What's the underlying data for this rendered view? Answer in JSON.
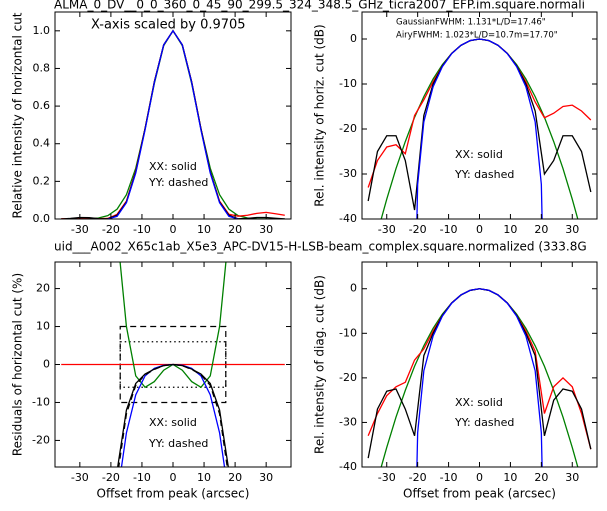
{
  "chart_data": [
    {
      "type": "line",
      "title": "ALMA_0_DV__0_0_360_0_45_90_299.5_324_348.5_GHz_ticra2007_EFP.im.square.normali",
      "title_color": "#000000",
      "ylabel": "Relative intensity of horizontal cut",
      "x": [
        -36,
        -33,
        -30,
        -27,
        -24,
        -21,
        -18,
        -15,
        -12,
        -9,
        -6,
        -3,
        0,
        3,
        6,
        9,
        12,
        15,
        18,
        21,
        24,
        27,
        30,
        33,
        36
      ],
      "xlim": [
        -38,
        38
      ],
      "xticks": [
        -30,
        -20,
        -10,
        0,
        10,
        20,
        30
      ],
      "ylim": [
        0,
        1.1
      ],
      "yticks": [
        {
          "value": 0,
          "label": "0.0"
        },
        0.2,
        0.4,
        0.6,
        0.8,
        {
          "value": 1,
          "label": "1.0"
        }
      ],
      "annotations": [
        {
          "text": "X-axis scaled by 0.9705",
          "color": "#000000"
        },
        {
          "text": "XX: solid",
          "color": "#000000"
        },
        {
          "text": "YY: dashed",
          "color": "#000000"
        }
      ],
      "series": [
        {
          "color": "#008000",
          "dash": false,
          "values": [
            0,
            0,
            0.0003,
            0.0013,
            0.0053,
            0.018,
            0.0525,
            0.129,
            0.27,
            0.479,
            0.721,
            0.921,
            1,
            0.921,
            0.721,
            0.479,
            0.27,
            0.129,
            0.0525,
            0.018,
            0.0053,
            0.0013,
            0.0003,
            0,
            0
          ]
        },
        {
          "color": "#ff0000",
          "dash": false,
          "values": [
            0.001,
            0.002,
            0.004,
            0.003,
            0.002,
            0.003,
            0.025,
            0.095,
            0.255,
            0.48,
            0.73,
            0.925,
            1,
            0.925,
            0.73,
            0.48,
            0.25,
            0.095,
            0.025,
            0.015,
            0.02,
            0.03,
            0.035,
            0.028,
            0.02
          ]
        },
        {
          "color": "#000000",
          "dash": false,
          "values": [
            0.0001,
            0.003,
            0.008,
            0.007,
            0.002,
            0.001,
            0.02,
            0.09,
            0.25,
            0.48,
            0.73,
            0.925,
            1,
            0.925,
            0.73,
            0.48,
            0.25,
            0.09,
            0.02,
            0.001,
            0.003,
            0.008,
            0.008,
            0.004,
            0.0005
          ]
        },
        {
          "color": "#0000ff",
          "dash": false,
          "x": [
            -21,
            -18,
            -15,
            -12,
            -9,
            -6,
            -3,
            0,
            3,
            6,
            9,
            12,
            15,
            18,
            21
          ],
          "values": [
            0,
            0.0144,
            0.0863,
            0.244,
            0.473,
            0.726,
            0.925,
            1,
            0.925,
            0.726,
            0.473,
            0.244,
            0.0863,
            0.0144,
            0
          ]
        }
      ]
    },
    {
      "type": "line",
      "ylabel": "Rel. intensity of horiz. cut (dB)",
      "x": [
        -36,
        -33,
        -30,
        -27,
        -24,
        -21,
        -18,
        -15,
        -12,
        -9,
        -6,
        -3,
        0,
        3,
        6,
        9,
        12,
        15,
        18,
        21,
        24,
        27,
        30,
        33,
        36
      ],
      "xlim": [
        -38,
        38
      ],
      "xticks": [
        -30,
        -20,
        -10,
        0,
        10,
        20,
        30
      ],
      "ylim": [
        -40,
        6
      ],
      "yticks": [
        -40,
        -30,
        -20,
        -10,
        0
      ],
      "annotations": [
        {
          "text": "GaussianFWHM: 1.131*L/D=17.46\"",
          "color": "#008000"
        },
        {
          "text": "AiryFWHM: 1.023*L/D=10.7m=17.70\"",
          "color": "#0000ff"
        },
        {
          "text": "XX: solid",
          "color": "#000000"
        },
        {
          "text": "YY: dashed",
          "color": "#000000"
        }
      ],
      "series": [
        {
          "color": "#008000",
          "dash": false,
          "values": [
            -51.2,
            -43,
            -35.6,
            -28.8,
            -22.8,
            -17.4,
            -12.8,
            -8.89,
            -5.69,
            -3.2,
            -1.42,
            -0.356,
            0,
            -0.356,
            -1.42,
            -3.2,
            -5.69,
            -8.89,
            -12.8,
            -17.4,
            -22.8,
            -28.8,
            -35.6,
            -43,
            -51.2
          ]
        },
        {
          "color": "#ff0000",
          "dash": false,
          "values": [
            -33,
            -27,
            -24,
            -23.5,
            -25.5,
            -17,
            -13.5,
            -9.5,
            -6,
            -3.2,
            -1.4,
            -0.35,
            0,
            -0.35,
            -1.4,
            -3.2,
            -6,
            -9.5,
            -14,
            -17.5,
            -16.5,
            -15,
            -14.7,
            -16,
            -18
          ]
        },
        {
          "color": "#000000",
          "dash": false,
          "values": [
            -36,
            -25,
            -21.5,
            -21.5,
            -27,
            -38,
            -17,
            -10,
            -6,
            -3.2,
            -1.4,
            -0.35,
            0,
            -0.35,
            -1.4,
            -3.2,
            -6,
            -10,
            -16,
            -30,
            -27,
            -21.5,
            -21.5,
            -25,
            -34
          ]
        },
        {
          "color": "#0000ff",
          "dash": false,
          "x": [
            -20.5,
            -20,
            -18,
            -15,
            -12,
            -9,
            -6,
            -3,
            0,
            3,
            6,
            9,
            12,
            15,
            18,
            20,
            20.5
          ],
          "values": [
            -48,
            -32.3,
            -18.4,
            -10.6,
            -6.13,
            -3.25,
            -1.39,
            -0.34,
            0,
            -0.34,
            -1.39,
            -3.25,
            -6.13,
            -10.6,
            -18.4,
            -32.3,
            -48
          ]
        }
      ]
    },
    {
      "type": "line",
      "title": "uid___A002_X65c1ab_X5e3_APC-DV15-H-LSB-beam_complex.square.normalized (333.8G",
      "title_color": "#ff0000",
      "ylabel": "Residuals of horizontal cut (%)",
      "xlabel": "Offset from peak (arcsec)",
      "x": [
        -36,
        -33,
        -30,
        -27,
        -24,
        -21,
        -18,
        -15,
        -12,
        -9,
        -6,
        -3,
        0,
        3,
        6,
        9,
        12,
        15,
        18,
        21,
        24,
        27,
        30,
        33,
        36
      ],
      "xlim": [
        -38,
        38
      ],
      "xticks": [
        -30,
        -20,
        -10,
        0,
        10,
        20,
        30
      ],
      "ylim": [
        -27,
        27
      ],
      "yticks": [
        -20,
        -10,
        0,
        10,
        20
      ],
      "annotations": [
        {
          "text": "XX: solid",
          "color": "#000000"
        },
        {
          "text": "YY: dashed",
          "color": "#000000"
        }
      ],
      "boxes": [
        {
          "x": [
            -17,
            17
          ],
          "y": [
            -10,
            10
          ],
          "style": "dashed"
        },
        {
          "x": [
            -17,
            17
          ],
          "y": [
            -6,
            6
          ],
          "style": "dotted"
        }
      ],
      "series": [
        {
          "color": "#ff0000",
          "dash": false,
          "values": [
            0,
            0,
            0,
            0,
            0,
            0,
            0,
            0,
            0,
            0,
            0,
            0,
            0,
            0,
            0,
            0,
            0,
            0,
            0,
            0,
            0,
            0,
            0,
            0,
            0
          ]
        },
        {
          "color": "#008000",
          "dash": false,
          "values": [
            null,
            null,
            null,
            null,
            null,
            null,
            35,
            10,
            -3,
            -6,
            -4.5,
            -1.5,
            0,
            -1.5,
            -4.5,
            -6,
            -3,
            10,
            35,
            null,
            null,
            null,
            null,
            null,
            null
          ]
        },
        {
          "color": "#0000ff",
          "dash": false,
          "values": [
            null,
            null,
            null,
            null,
            null,
            null,
            -35,
            -18,
            -8,
            -3,
            -1,
            -0.2,
            0,
            -0.2,
            -1,
            -3,
            -8,
            -18,
            -35,
            null,
            null,
            null,
            null,
            null,
            null
          ]
        },
        {
          "color": "#000000",
          "dash": true,
          "values": [
            null,
            null,
            null,
            null,
            null,
            null,
            -30,
            -13,
            -5.5,
            -2.7,
            -1.3,
            -0.3,
            0,
            -0.3,
            -1.3,
            -2.7,
            -5.5,
            -13,
            -30,
            null,
            null,
            null,
            null,
            null,
            null
          ]
        },
        {
          "color": "#000000",
          "dash": false,
          "values": [
            null,
            null,
            null,
            null,
            null,
            -40,
            -28,
            -12,
            -5,
            -2.5,
            -1.2,
            -0.3,
            0,
            -0.3,
            -1.2,
            -2.5,
            -5,
            -12,
            -28,
            -40,
            null,
            null,
            null,
            null,
            null
          ]
        }
      ]
    },
    {
      "type": "line",
      "ylabel": "Rel. intensity of diag. cut (dB)",
      "xlabel": "Offset from peak (arcsec)",
      "x": [
        -36,
        -33,
        -30,
        -27,
        -24,
        -21,
        -18,
        -15,
        -12,
        -9,
        -6,
        -3,
        0,
        3,
        6,
        9,
        12,
        15,
        18,
        21,
        24,
        27,
        30,
        33,
        36
      ],
      "xlim": [
        -38,
        38
      ],
      "xticks": [
        -30,
        -20,
        -10,
        0,
        10,
        20,
        30
      ],
      "ylim": [
        -40,
        6
      ],
      "yticks": [
        -40,
        -30,
        -20,
        -10,
        0
      ],
      "annotations": [
        {
          "text": "XX: solid",
          "color": "#000000"
        },
        {
          "text": "YY: dashed",
          "color": "#000000"
        }
      ],
      "series": [
        {
          "color": "#008000",
          "dash": false,
          "values": [
            -51.2,
            -43,
            -35.6,
            -28.8,
            -22.8,
            -17.4,
            -12.8,
            -8.89,
            -5.69,
            -3.2,
            -1.42,
            -0.356,
            0,
            -0.356,
            -1.42,
            -3.2,
            -5.69,
            -8.89,
            -12.8,
            -17.4,
            -22.8,
            -28.8,
            -35.6,
            -43,
            -51.2
          ]
        },
        {
          "color": "#ff0000",
          "dash": false,
          "values": [
            -33,
            -28,
            -24,
            -22,
            -21,
            -16,
            -13.5,
            -9.5,
            -6,
            -3.2,
            -1.4,
            -0.35,
            0,
            -0.35,
            -1.4,
            -3.2,
            -6,
            -9.5,
            -14,
            -28,
            -22,
            -20,
            -22,
            -28,
            -36
          ]
        },
        {
          "color": "#000000",
          "dash": false,
          "values": [
            -38,
            -27,
            -23,
            -22.5,
            -27,
            -33,
            -15,
            -10,
            -6,
            -3.2,
            -1.4,
            -0.35,
            0,
            -0.35,
            -1.4,
            -3.2,
            -6,
            -10,
            -15,
            -33,
            -25,
            -22.5,
            -23,
            -27,
            -36
          ]
        },
        {
          "color": "#0000ff",
          "dash": false,
          "x": [
            -20.5,
            -20,
            -18,
            -15,
            -12,
            -9,
            -6,
            -3,
            0,
            3,
            6,
            9,
            12,
            15,
            18,
            20,
            20.5
          ],
          "values": [
            -48,
            -32.3,
            -18.4,
            -10.6,
            -6.13,
            -3.25,
            -1.39,
            -0.34,
            0,
            -0.34,
            -1.39,
            -3.25,
            -6.13,
            -10.6,
            -18.4,
            -32.3,
            -48
          ]
        }
      ]
    }
  ]
}
